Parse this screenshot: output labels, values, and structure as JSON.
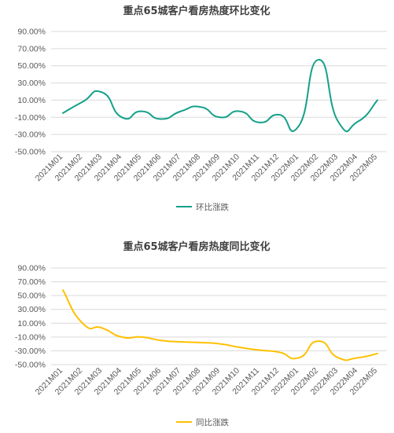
{
  "chart_data": [
    {
      "type": "line",
      "title": "重点65城客户看房热度环比变化",
      "categories": [
        "2021M01",
        "2021M02",
        "2021M03",
        "2021M04",
        "2021M05",
        "2021M06",
        "2021M07",
        "2021M08",
        "2021M09",
        "2021M10",
        "2021M11",
        "2021M12",
        "2022M01",
        "2022M02",
        "2022M03",
        "2022M04",
        "2022M05"
      ],
      "y_ticks": [
        "90.00%",
        "70.00%",
        "50.00%",
        "30.00%",
        "10.00%",
        "-10.00%",
        "-30.00%",
        "-50.00%"
      ],
      "ylim": [
        -50,
        90
      ],
      "grid": true,
      "legend_position": "bottom",
      "series": [
        {
          "name": "环比涨跌",
          "color": "#14a089",
          "values": [
            -5,
            8,
            19,
            -10,
            -3,
            -12,
            -3,
            2,
            -10,
            -3,
            -16,
            -7,
            -20,
            57,
            -15,
            -15,
            10
          ]
        }
      ]
    },
    {
      "type": "line",
      "title": "重点65城客户看房热度同比变化",
      "categories": [
        "2021M01",
        "2021M02",
        "2021M03",
        "2021M04",
        "2021M05",
        "2021M06",
        "2021M07",
        "2021M08",
        "2021M09",
        "2021M10",
        "2021M11",
        "2021M12",
        "2022M01",
        "2022M02",
        "2022M03",
        "2022M04",
        "2022M05"
      ],
      "y_ticks": [
        "90.00%",
        "70.00%",
        "50.00%",
        "30.00%",
        "10.00%",
        "-10.00%",
        "-30.00%",
        "-50.00%"
      ],
      "ylim": [
        -50,
        90
      ],
      "grid": true,
      "legend_position": "bottom",
      "series": [
        {
          "name": "同比涨跌",
          "color": "#ffc000",
          "values": [
            58,
            10,
            3,
            -10,
            -10,
            -15,
            -17,
            -18,
            -20,
            -25,
            -29,
            -32,
            -40,
            -16,
            -40,
            -40,
            -34
          ]
        }
      ]
    }
  ]
}
